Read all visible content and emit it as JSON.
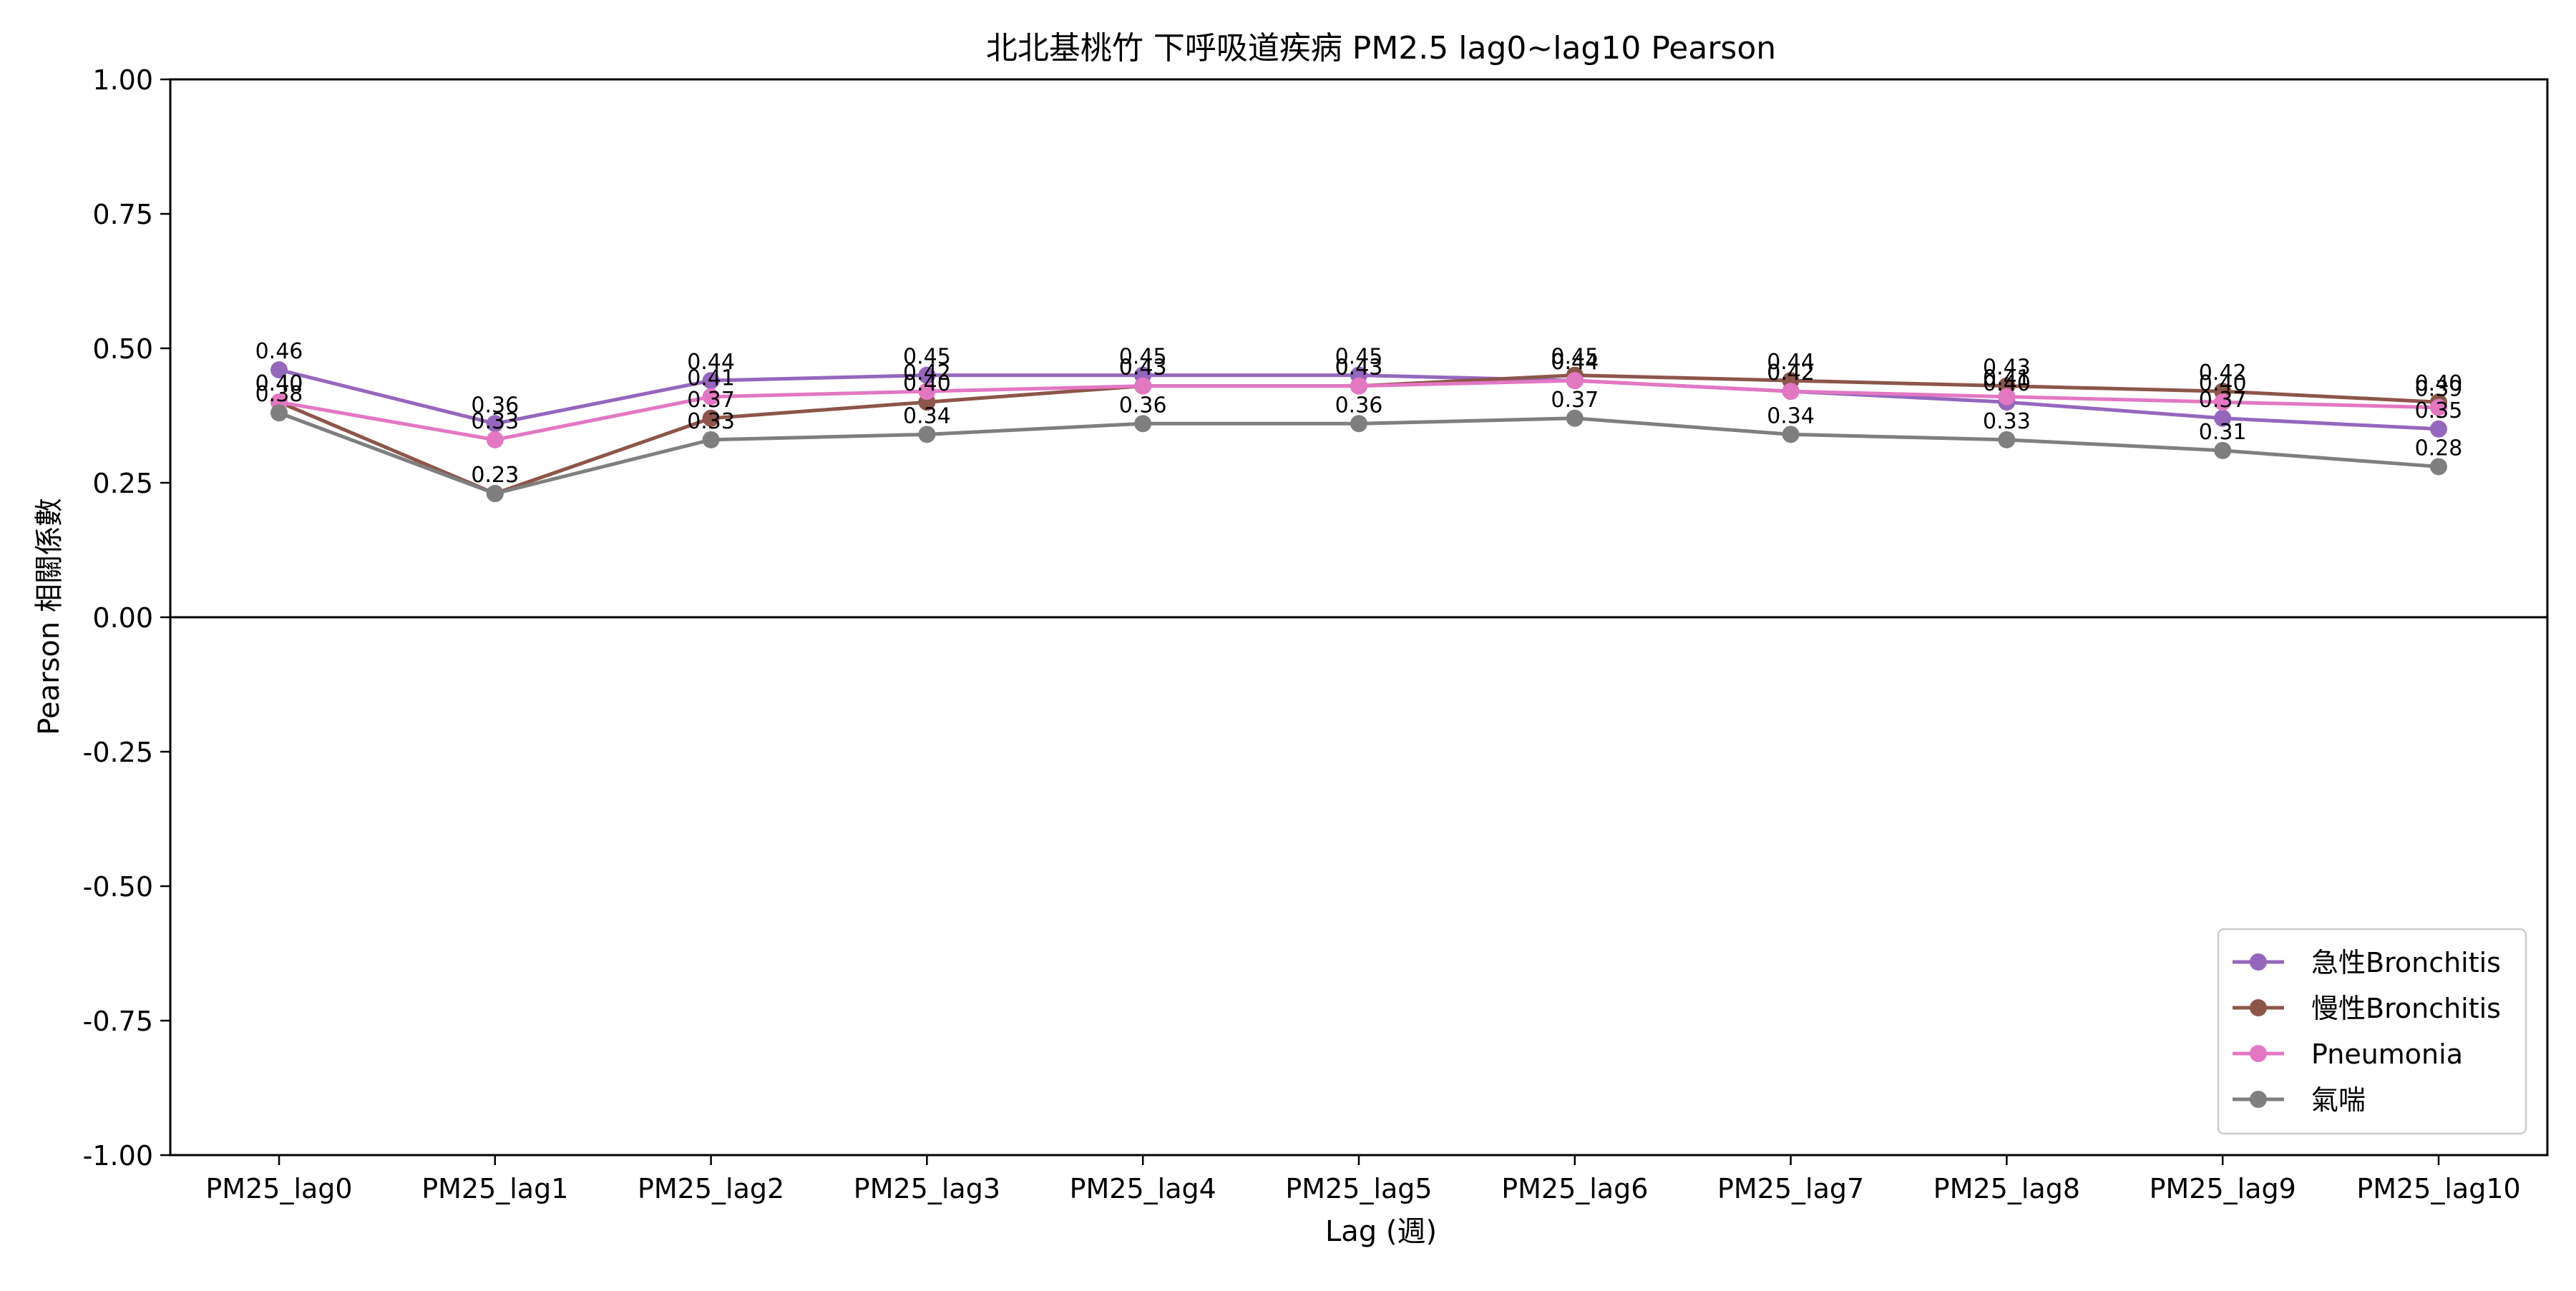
{
  "chart_data": {
    "type": "line",
    "title": "北北基桃竹 下呼吸道疾病 PM2.5 lag0~lag10 Pearson",
    "xlabel": "Lag (週)",
    "ylabel": "Pearson 相關係數",
    "categories": [
      "PM25_lag0",
      "PM25_lag1",
      "PM25_lag2",
      "PM25_lag3",
      "PM25_lag4",
      "PM25_lag5",
      "PM25_lag6",
      "PM25_lag7",
      "PM25_lag8",
      "PM25_lag9",
      "PM25_lag10"
    ],
    "ylim": [
      -1.0,
      1.0
    ],
    "yticks": [
      "-1.00",
      "-0.75",
      "-0.50",
      "-0.25",
      "0.00",
      "0.25",
      "0.50",
      "0.75",
      "1.00"
    ],
    "ytick_values": [
      -1.0,
      -0.75,
      -0.5,
      -0.25,
      0.0,
      0.25,
      0.5,
      0.75,
      1.0
    ],
    "zero_line": true,
    "grid": false,
    "legend_position": "bottom-right",
    "series": [
      {
        "name": "急性Bronchitis",
        "color": "#9467bd",
        "values": [
          0.46,
          0.36,
          0.44,
          0.45,
          0.45,
          0.45,
          0.44,
          0.42,
          0.4,
          0.37,
          0.35
        ]
      },
      {
        "name": "慢性Bronchitis",
        "color": "#8c564b",
        "values": [
          0.4,
          0.23,
          0.37,
          0.4,
          0.43,
          0.43,
          0.45,
          0.44,
          0.43,
          0.42,
          0.4
        ]
      },
      {
        "name": "Pneumonia",
        "color": "#e377c2",
        "values": [
          0.4,
          0.33,
          0.41,
          0.42,
          0.43,
          0.43,
          0.44,
          0.42,
          0.41,
          0.4,
          0.39
        ]
      },
      {
        "name": "氣喘",
        "color": "#7f7f7f",
        "values": [
          0.38,
          0.23,
          0.33,
          0.34,
          0.36,
          0.36,
          0.37,
          0.34,
          0.33,
          0.31,
          0.28
        ]
      }
    ]
  }
}
